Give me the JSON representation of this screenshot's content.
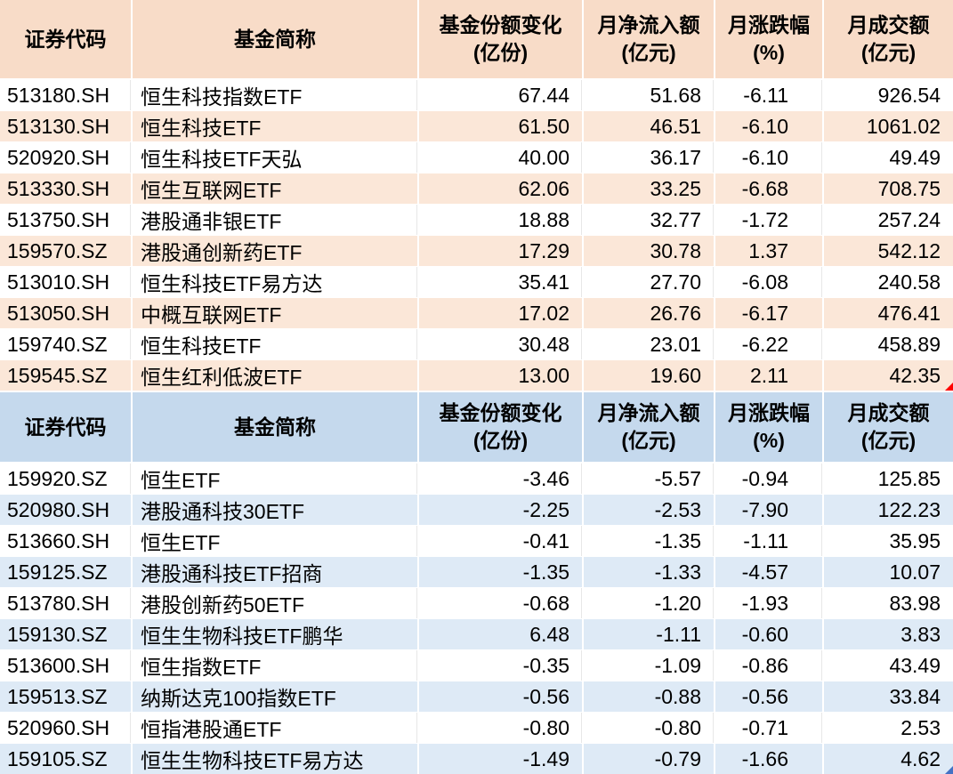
{
  "theme": {
    "table1_header": "#F8DCC8",
    "table1_stripe": "#FBE7D8",
    "table2_header": "#C5D9ED",
    "table2_stripe": "#DEEAF6",
    "marker_red": "#FF0000",
    "marker_blue": "#4472C4",
    "text_color": "#000000",
    "grid_line": "#FFFFFF"
  },
  "chart_data": [
    {
      "type": "table",
      "name": "etf-monthly-net-inflow-top10",
      "columns": [
        {
          "label": "证券代码",
          "unit": ""
        },
        {
          "label": "基金简称",
          "unit": ""
        },
        {
          "label": "基金份额变化",
          "unit": "(亿份)"
        },
        {
          "label": "月净流入额",
          "unit": "(亿元)"
        },
        {
          "label": "月涨跌幅",
          "unit": "(%)"
        },
        {
          "label": "月成交额",
          "unit": "(亿元)"
        }
      ],
      "rows": [
        {
          "code": "513180.SH",
          "name": "恒生科技指数ETF",
          "share_change": "67.44",
          "net_inflow": "51.68",
          "pct_change": "-6.11",
          "turnover": "926.54"
        },
        {
          "code": "513130.SH",
          "name": "恒生科技ETF",
          "share_change": "61.50",
          "net_inflow": "46.51",
          "pct_change": "-6.10",
          "turnover": "1061.02"
        },
        {
          "code": "520920.SH",
          "name": "恒生科技ETF天弘",
          "share_change": "40.00",
          "net_inflow": "36.17",
          "pct_change": "-6.10",
          "turnover": "49.49"
        },
        {
          "code": "513330.SH",
          "name": "恒生互联网ETF",
          "share_change": "62.06",
          "net_inflow": "33.25",
          "pct_change": "-6.68",
          "turnover": "708.75"
        },
        {
          "code": "513750.SH",
          "name": "港股通非银ETF",
          "share_change": "18.88",
          "net_inflow": "32.77",
          "pct_change": "-1.72",
          "turnover": "257.24"
        },
        {
          "code": "159570.SZ",
          "name": "港股通创新药ETF",
          "share_change": "17.29",
          "net_inflow": "30.78",
          "pct_change": "1.37",
          "turnover": "542.12"
        },
        {
          "code": "513010.SH",
          "name": "恒生科技ETF易方达",
          "share_change": "35.41",
          "net_inflow": "27.70",
          "pct_change": "-6.08",
          "turnover": "240.58"
        },
        {
          "code": "513050.SH",
          "name": "中概互联网ETF",
          "share_change": "17.02",
          "net_inflow": "26.76",
          "pct_change": "-6.17",
          "turnover": "476.41"
        },
        {
          "code": "159740.SZ",
          "name": "恒生科技ETF",
          "share_change": "30.48",
          "net_inflow": "23.01",
          "pct_change": "-6.22",
          "turnover": "458.89"
        },
        {
          "code": "159545.SZ",
          "name": "恒生红利低波ETF",
          "share_change": "13.00",
          "net_inflow": "19.60",
          "pct_change": "2.11",
          "turnover": "42.35"
        }
      ]
    },
    {
      "type": "table",
      "name": "etf-monthly-net-outflow-top10",
      "columns": [
        {
          "label": "证券代码",
          "unit": ""
        },
        {
          "label": "基金简称",
          "unit": ""
        },
        {
          "label": "基金份额变化",
          "unit": "(亿份)"
        },
        {
          "label": "月净流入额",
          "unit": "(亿元)"
        },
        {
          "label": "月涨跌幅",
          "unit": "(%)"
        },
        {
          "label": "月成交额",
          "unit": "(亿元)"
        }
      ],
      "rows": [
        {
          "code": "159920.SZ",
          "name": "恒生ETF",
          "share_change": "-3.46",
          "net_inflow": "-5.57",
          "pct_change": "-0.94",
          "turnover": "125.85"
        },
        {
          "code": "520980.SH",
          "name": "港股通科技30ETF",
          "share_change": "-2.25",
          "net_inflow": "-2.53",
          "pct_change": "-7.90",
          "turnover": "122.23"
        },
        {
          "code": "513660.SH",
          "name": "恒生ETF",
          "share_change": "-0.41",
          "net_inflow": "-1.35",
          "pct_change": "-1.11",
          "turnover": "35.95"
        },
        {
          "code": "159125.SZ",
          "name": "港股通科技ETF招商",
          "share_change": "-1.35",
          "net_inflow": "-1.33",
          "pct_change": "-4.57",
          "turnover": "10.07"
        },
        {
          "code": "513780.SH",
          "name": "港股创新药50ETF",
          "share_change": "-0.68",
          "net_inflow": "-1.20",
          "pct_change": "-1.93",
          "turnover": "83.98"
        },
        {
          "code": "159130.SZ",
          "name": "恒生生物科技ETF鹏华",
          "share_change": "6.48",
          "net_inflow": "-1.11",
          "pct_change": "-0.60",
          "turnover": "3.83"
        },
        {
          "code": "513600.SH",
          "name": "恒生指数ETF",
          "share_change": "-0.35",
          "net_inflow": "-1.09",
          "pct_change": "-0.86",
          "turnover": "43.49"
        },
        {
          "code": "159513.SZ",
          "name": "纳斯达克100指数ETF",
          "share_change": "-0.56",
          "net_inflow": "-0.88",
          "pct_change": "-0.56",
          "turnover": "33.84"
        },
        {
          "code": "520960.SH",
          "name": "恒指港股通ETF",
          "share_change": "-0.80",
          "net_inflow": "-0.80",
          "pct_change": "-0.71",
          "turnover": "2.53"
        },
        {
          "code": "159105.SZ",
          "name": "恒生生物科技ETF易方达",
          "share_change": "-1.49",
          "net_inflow": "-0.79",
          "pct_change": "-1.66",
          "turnover": "4.62"
        }
      ]
    }
  ]
}
